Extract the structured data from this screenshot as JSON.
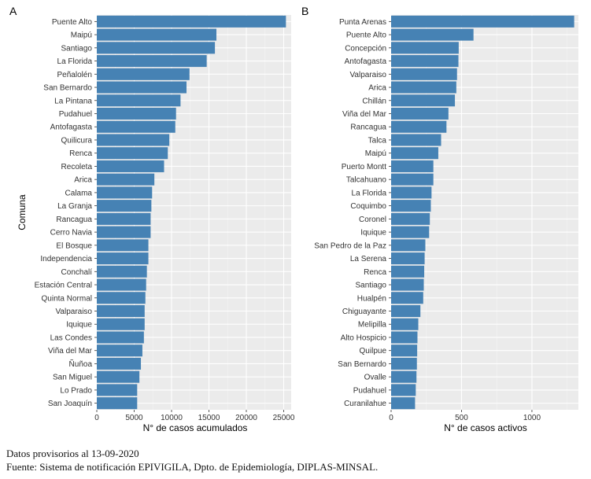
{
  "chart_data": [
    {
      "type": "bar",
      "orientation": "horizontal",
      "panel_label": "A",
      "xlabel": "N° de casos acumulados",
      "ylabel": "Comuna",
      "xlim": [
        0,
        26000
      ],
      "xticks": [
        0,
        5000,
        10000,
        15000,
        20000,
        25000
      ],
      "grid": true,
      "bar_color": "#4682b4",
      "categories": [
        "Puente Alto",
        "Maipú",
        "Santiago",
        "La Florida",
        "Peñalolén",
        "San Bernardo",
        "La Pintana",
        "Pudahuel",
        "Antofagasta",
        "Quilicura",
        "Renca",
        "Recoleta",
        "Arica",
        "Calama",
        "La Granja",
        "Rancagua",
        "Cerro Navia",
        "El Bosque",
        "Independencia",
        "Conchalí",
        "Estación Central",
        "Quinta Normal",
        "Valparaiso",
        "Iquique",
        "Las Condes",
        "Viña del Mar",
        "Ñuñoa",
        "San Miguel",
        "Lo Prado",
        "San Joaquín"
      ],
      "values": [
        25300,
        16000,
        15800,
        14700,
        12400,
        12000,
        11200,
        10600,
        10500,
        9700,
        9500,
        9000,
        7700,
        7400,
        7300,
        7200,
        7200,
        6900,
        6900,
        6700,
        6600,
        6500,
        6400,
        6400,
        6300,
        6100,
        5900,
        5700,
        5400,
        5400
      ]
    },
    {
      "type": "bar",
      "orientation": "horizontal",
      "panel_label": "B",
      "xlabel": "N° de casos activos",
      "ylabel": "",
      "xlim": [
        0,
        1330
      ],
      "xticks": [
        0,
        500,
        1000
      ],
      "grid": true,
      "bar_color": "#4682b4",
      "categories": [
        "Punta Arenas",
        "Puente Alto",
        "Concepción",
        "Antofagasta",
        "Valparaiso",
        "Arica",
        "Chillán",
        "Viña del Mar",
        "Rancagua",
        "Talca",
        "Maipú",
        "Puerto Montt",
        "Talcahuano",
        "La Florida",
        "Coquimbo",
        "Coronel",
        "Iquique",
        "San Pedro de la Paz",
        "La Serena",
        "Renca",
        "Santiago",
        "Hualpén",
        "Chiguayante",
        "Melipilla",
        "Alto Hospicio",
        "Quilpue",
        "San Bernardo",
        "Ovalle",
        "Pudahuel",
        "Curanilahue"
      ],
      "values": [
        1300,
        585,
        480,
        478,
        468,
        463,
        453,
        407,
        393,
        355,
        335,
        300,
        300,
        287,
        282,
        275,
        270,
        243,
        238,
        235,
        232,
        228,
        208,
        193,
        187,
        185,
        183,
        180,
        175,
        170
      ]
    }
  ],
  "footer": {
    "line1": "Datos provisorios al 13-09-2020",
    "line2": "Fuente: Sistema de notificación EPIVIGILA, Dpto. de Epidemiología, DIPLAS-MINSAL."
  }
}
